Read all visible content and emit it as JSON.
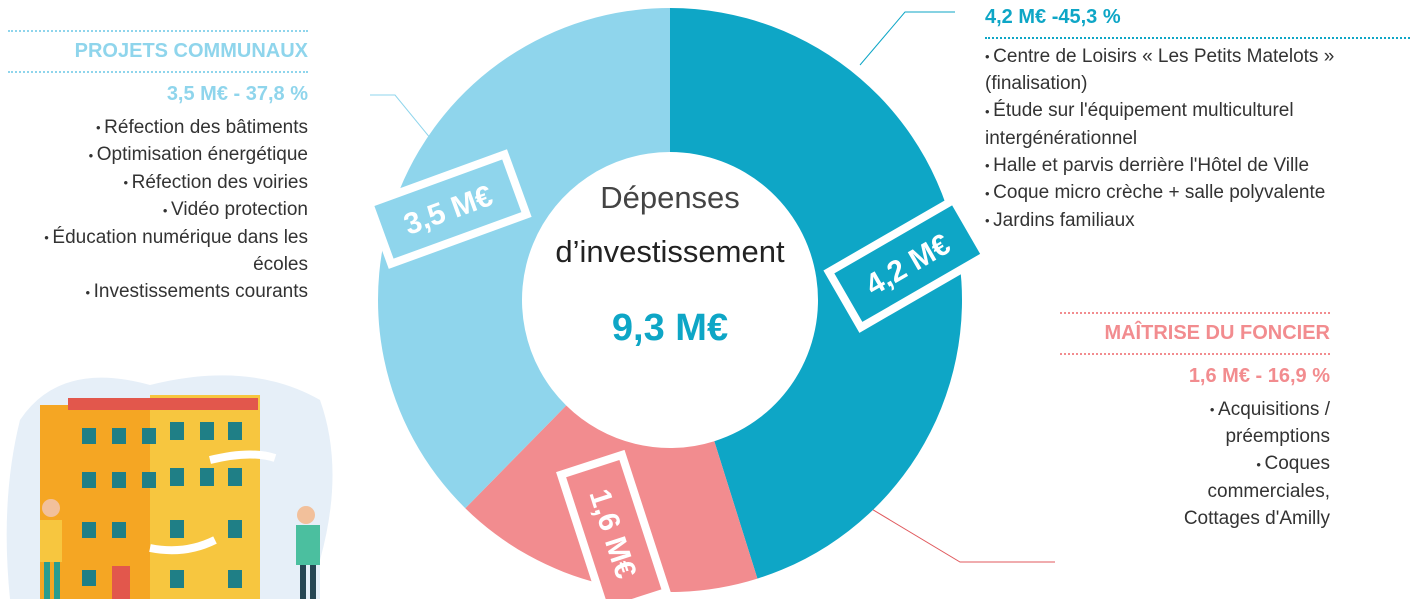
{
  "chart_data": {
    "type": "donut",
    "title": "Dépenses",
    "subtitle": "d’investissement",
    "total_label": "9,3 M€",
    "values": [
      4.2,
      1.6,
      3.5
    ],
    "value_labels": [
      "4,2 M€",
      "1,6 M€",
      "3,5 M€"
    ],
    "colors": [
      "#0ea6c6",
      "#f28c8f",
      "#8fd5ec"
    ],
    "annotations": [
      {
        "figures": "4,2 M€ -45,3 %",
        "items": [
          "Centre de Loisirs « Les Petits Matelots » (finalisation)",
          "Étude sur l'équipement multiculturel intergénérationnel",
          "Halle et parvis derrière l'Hôtel de Ville",
          "Coque micro crèche + salle polyvalente",
          "Jardins familiaux"
        ]
      },
      {
        "heading": "MAÎTRISE DU FONCIER",
        "figures": "1,6 M€ - 16,9 %",
        "items": [
          "Acquisitions / préemptions",
          "Coques commerciales, Cottages d'Amilly"
        ]
      },
      {
        "heading": "PROJETS COMMUNAUX",
        "figures": "3,5 M€ - 37,8 %",
        "items": [
          "Réfection des bâtiments",
          "Optimisation énergétique",
          "Réfection des voiries",
          "Vidéo protection",
          "Éducation numérique dans les écoles",
          "Investissements courants"
        ]
      }
    ]
  }
}
